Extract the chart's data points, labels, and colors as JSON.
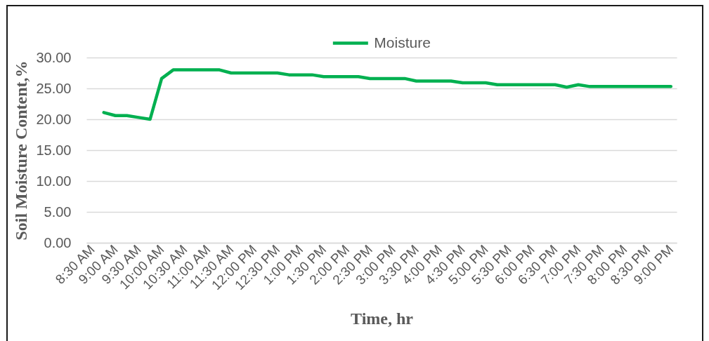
{
  "chart_data": {
    "type": "line",
    "xlabel": "Time, hr",
    "ylabel": "Soil Moisture Content,%",
    "categories": [
      "8:30 AM",
      null,
      "9:00 AM",
      null,
      "9:30 AM",
      null,
      "10:00 AM",
      null,
      "10:30 AM",
      null,
      "11:00 AM",
      null,
      "11:30 AM",
      null,
      "12:00 PM",
      null,
      "12:30 PM",
      null,
      "1:00 PM",
      null,
      "1:30 PM",
      null,
      "2:00 PM",
      null,
      "2:30 PM",
      null,
      "3:00 PM",
      null,
      "3:30 PM",
      null,
      "4:00 PM",
      null,
      "4:30 PM",
      null,
      "5:00 PM",
      null,
      "5:30 PM",
      null,
      "6:00 PM",
      null,
      "6:30 PM",
      null,
      "7:00 PM",
      null,
      "7:30 PM",
      null,
      "8:00 PM",
      null,
      "8:30 PM",
      null,
      "9:00 PM"
    ],
    "series": [
      {
        "name": "Moisture",
        "color": "#00b050",
        "values": [
          null,
          21.1,
          20.6,
          20.6,
          20.3,
          20.0,
          26.6,
          28.0,
          28.0,
          28.0,
          28.0,
          28.0,
          27.5,
          27.5,
          27.5,
          27.5,
          27.5,
          27.2,
          27.2,
          27.2,
          26.9,
          26.9,
          26.9,
          26.9,
          26.6,
          26.6,
          26.6,
          26.6,
          26.2,
          26.2,
          26.2,
          26.2,
          25.9,
          25.9,
          25.9,
          25.6,
          25.6,
          25.6,
          25.6,
          25.6,
          25.6,
          25.2,
          25.6,
          25.3,
          25.3,
          25.3,
          25.3,
          25.3,
          25.3,
          25.3,
          25.3
        ]
      }
    ],
    "ylim": [
      0,
      30
    ],
    "yticks": [
      {
        "value": 0,
        "label": "0.00"
      },
      {
        "value": 5,
        "label": "5.00"
      },
      {
        "value": 10,
        "label": "10.00"
      },
      {
        "value": 15,
        "label": "15.00"
      },
      {
        "value": 20,
        "label": "20.00"
      },
      {
        "value": 25,
        "label": "25.00"
      },
      {
        "value": 30,
        "label": "30.00"
      }
    ],
    "grid": "y",
    "legend": "top",
    "line_style": "solid"
  }
}
